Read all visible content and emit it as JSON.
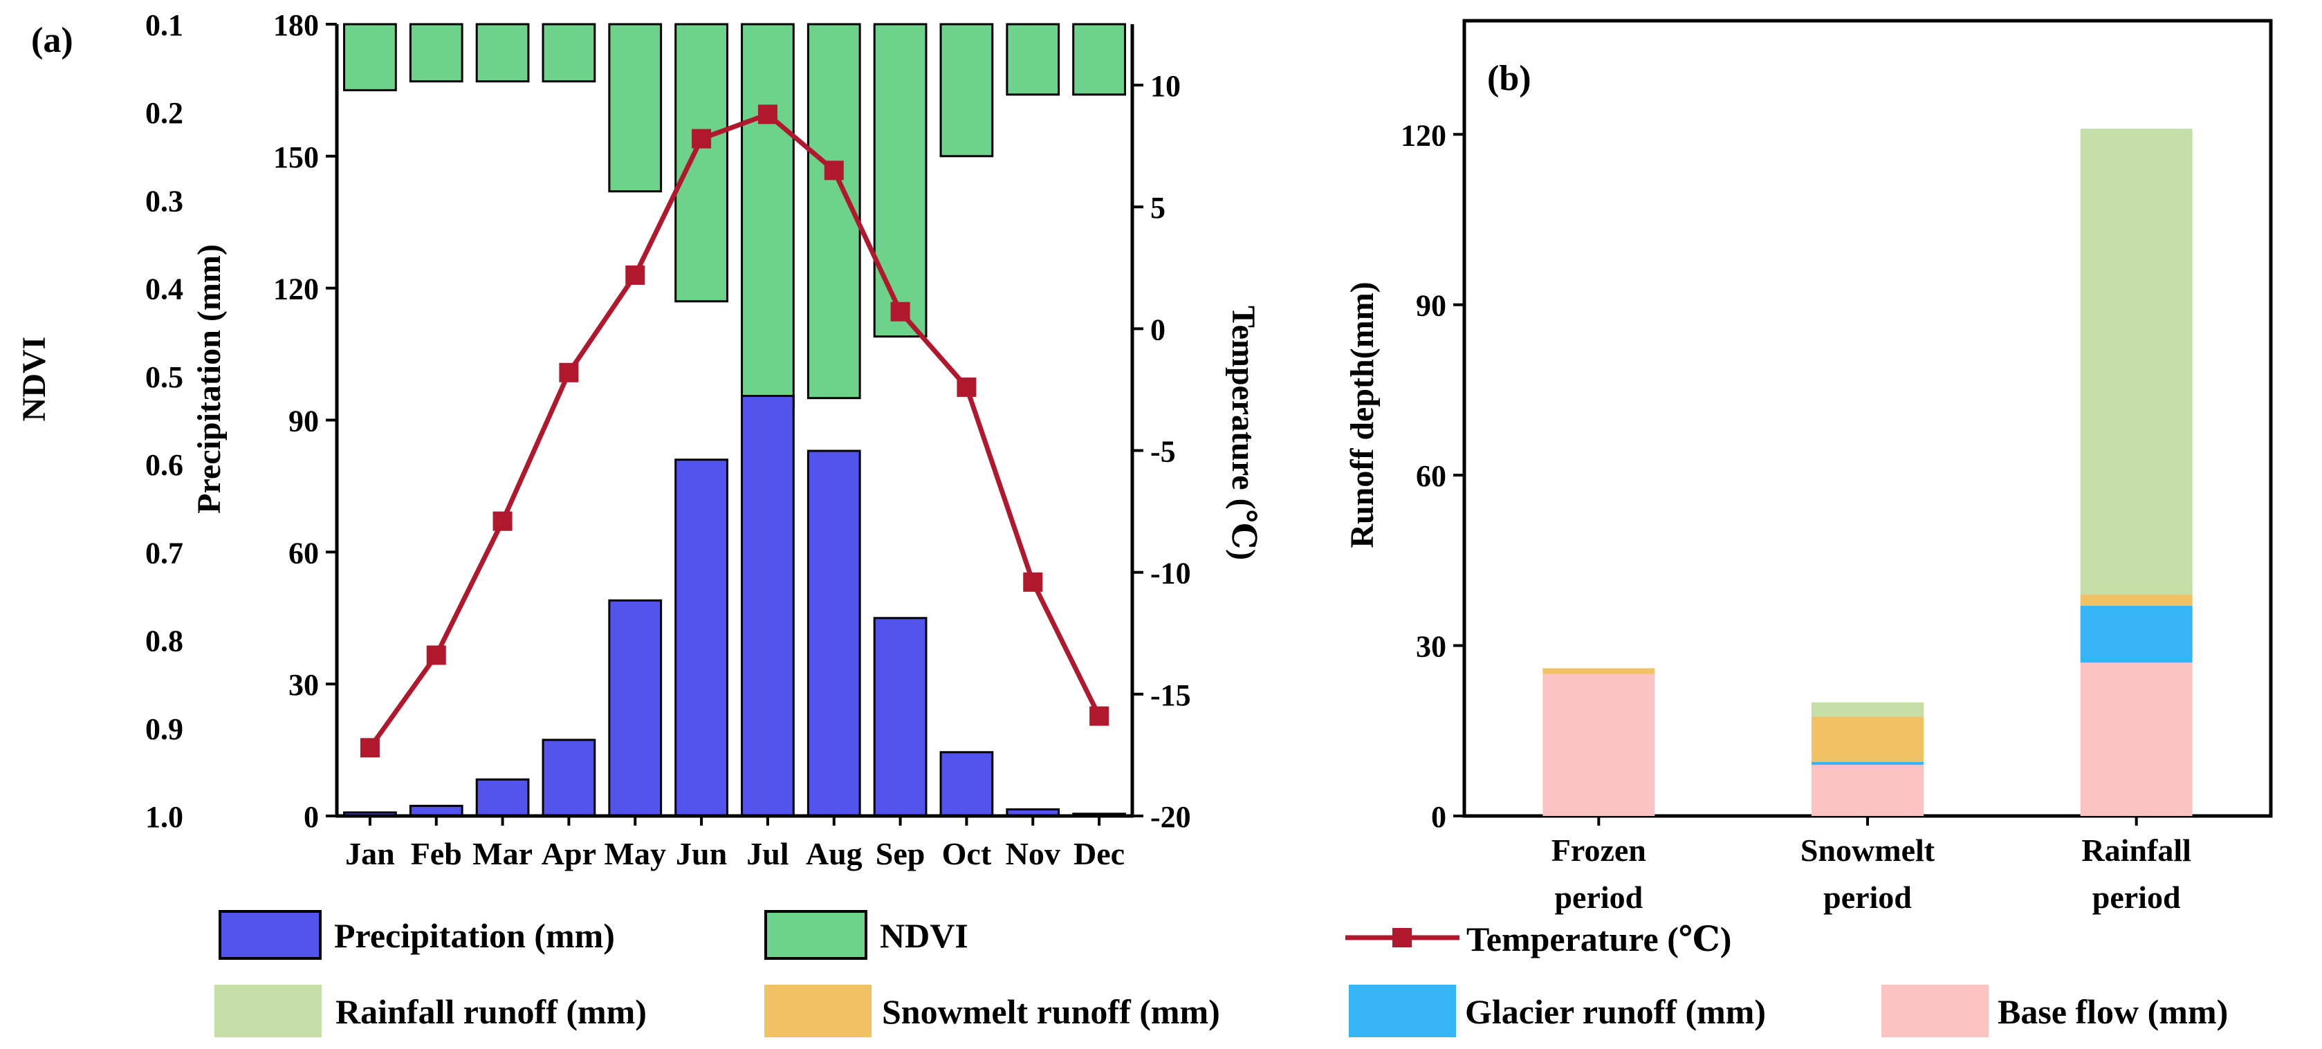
{
  "panel_a": {
    "panel_label": "(a)",
    "chart_data": {
      "type": "bar+line",
      "categories": [
        "Jan",
        "Feb",
        "Mar",
        "Apr",
        "May",
        "Jun",
        "Jul",
        "Aug",
        "Sep",
        "Oct",
        "Nov",
        "Dec"
      ],
      "series": [
        {
          "name": "Precipitation (mm)",
          "kind": "bar",
          "axis": "left",
          "values": [
            0.8,
            2.3,
            8.3,
            17.3,
            49,
            81,
            95.5,
            83,
            45,
            14.5,
            1.5,
            0.5
          ]
        },
        {
          "name": "NDVI",
          "kind": "bar-from-top",
          "axis": "far-left-inverted",
          "values": [
            0.175,
            0.165,
            0.165,
            0.165,
            0.29,
            0.415,
            0.535,
            0.525,
            0.455,
            0.25,
            0.18,
            0.18
          ]
        },
        {
          "name": "Temperature (℃)",
          "kind": "line",
          "axis": "right",
          "values": [
            -17.2,
            -13.4,
            -7.9,
            -1.8,
            2.2,
            7.8,
            8.8,
            6.5,
            0.7,
            -2.4,
            -10.4,
            -15.9
          ]
        }
      ],
      "precip_axis": {
        "label": "Precipitation (mm)",
        "ylim": [
          0,
          180
        ],
        "ticks": [
          "0",
          "30",
          "60",
          "90",
          "120",
          "150",
          "180"
        ]
      },
      "ndvi_axis": {
        "label": "NDVI",
        "ylim": [
          0.1,
          1.0
        ],
        "inverted": true,
        "ticks": [
          "0.1",
          "0.2",
          "0.3",
          "0.4",
          "0.5",
          "0.6",
          "0.7",
          "0.8",
          "0.9",
          "1.0"
        ]
      },
      "temp_axis": {
        "label": "Temperature (℃)",
        "ylim": [
          -20,
          12.5
        ],
        "ticks": [
          "-20",
          "-15",
          "-10",
          "-5",
          "0",
          "5",
          "10"
        ]
      },
      "colors": {
        "precip": "#5353ee",
        "ndvi": "#6dd28a",
        "temp": "#b0182e"
      }
    }
  },
  "panel_b": {
    "panel_label": "(b)",
    "chart_data": {
      "type": "stacked-bar",
      "categories": [
        [
          "Frozen",
          "period"
        ],
        [
          "Snowmelt",
          "period"
        ],
        [
          "Rainfall",
          "period"
        ]
      ],
      "series": [
        {
          "name": "Base flow (mm)",
          "values": [
            25,
            9,
            27
          ]
        },
        {
          "name": "Glacier runoff (mm)",
          "values": [
            0,
            0.5,
            10
          ]
        },
        {
          "name": "Snowmelt runoff (mm)",
          "values": [
            1,
            8,
            2
          ]
        },
        {
          "name": "Rainfall runoff (mm)",
          "values": [
            0,
            2.5,
            82
          ]
        }
      ],
      "ylabel": "Runoff depth(mm)",
      "ylim": [
        0,
        140
      ],
      "ticks": [
        "0",
        "30",
        "60",
        "90",
        "120"
      ],
      "colors": {
        "base": "#fbc4c2",
        "glacier": "#35b5f4",
        "snowmelt": "#f0c264",
        "rainfall": "#c6dea8"
      }
    }
  },
  "legend": {
    "row1": [
      "Precipitation (mm)",
      "NDVI",
      "Temperature (℃)"
    ],
    "row2": [
      "Rainfall runoff (mm)",
      "Snowmelt runoff (mm)",
      "Glacier runoff (mm)",
      "Base flow (mm)"
    ]
  }
}
